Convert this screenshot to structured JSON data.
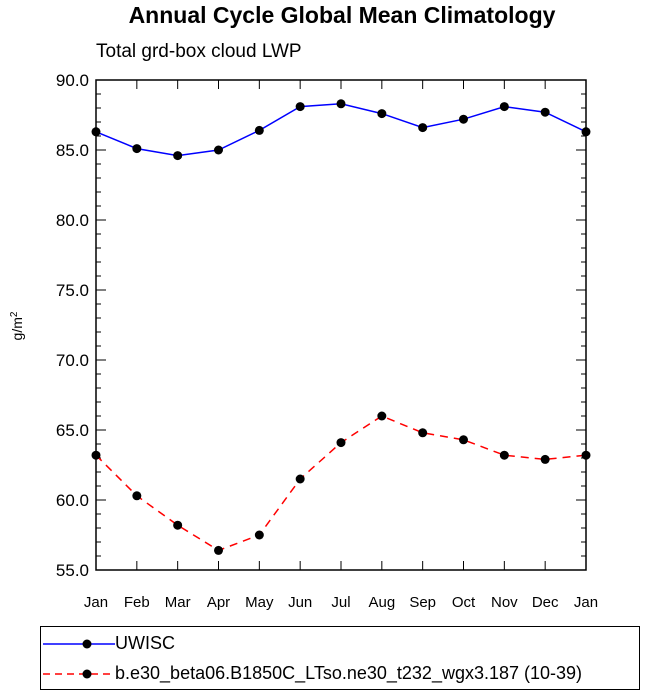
{
  "chart_data": {
    "type": "line",
    "title": "Annual Cycle Global Mean Climatology",
    "subtitle": "Total grd-box cloud LWP",
    "xlabel": "",
    "ylabel": "g/m²",
    "categories": [
      "Jan",
      "Feb",
      "Mar",
      "Apr",
      "May",
      "Jun",
      "Jul",
      "Aug",
      "Sep",
      "Oct",
      "Nov",
      "Dec",
      "Jan"
    ],
    "ylim": [
      55.0,
      90.0
    ],
    "yticks": [
      "55.0",
      "60.0",
      "65.0",
      "70.0",
      "75.0",
      "80.0",
      "85.0",
      "90.0"
    ],
    "grid": false,
    "legend_position": "bottom",
    "series": [
      {
        "name": "UWISC",
        "color": "#0000ff",
        "dash": "solid",
        "values": [
          86.3,
          85.1,
          84.6,
          85.0,
          86.4,
          88.1,
          88.3,
          87.6,
          86.6,
          87.2,
          88.1,
          87.7,
          86.3
        ]
      },
      {
        "name": "b.e30_beta06.B1850C_LTso.ne30_t232_wgx3.187 (10-39)",
        "color": "#ff0000",
        "dash": "dashed",
        "values": [
          63.2,
          60.3,
          58.2,
          56.4,
          57.5,
          61.5,
          64.1,
          66.0,
          64.8,
          64.3,
          63.2,
          62.9,
          63.2
        ]
      }
    ]
  }
}
